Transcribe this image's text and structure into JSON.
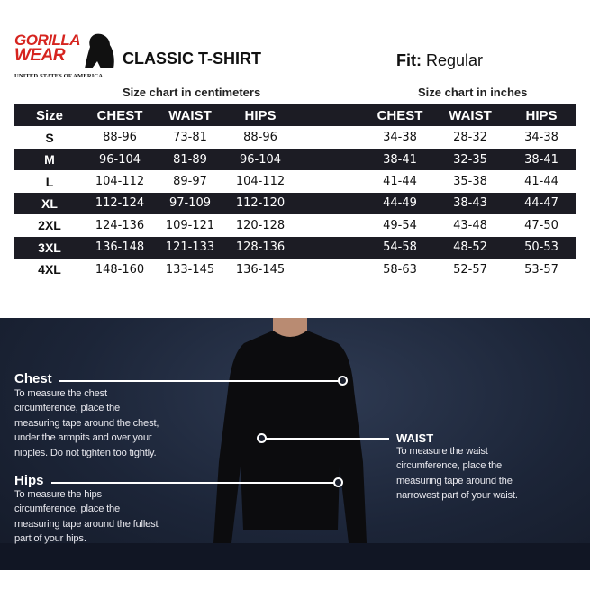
{
  "brand": {
    "line1": "GORILLA",
    "line2": "WEAR",
    "tagline": "UNITED STATES OF AMERICA",
    "accent": "#d6241f"
  },
  "title": "CLASSIC T-SHIRT",
  "fit": {
    "label": "Fit:",
    "value": "Regular"
  },
  "cm": {
    "caption": "Size chart in centimeters",
    "headers": [
      "Size",
      "CHEST",
      "WAIST",
      "HIPS"
    ],
    "rows": [
      [
        "S",
        "88-96",
        "73-81",
        "88-96"
      ],
      [
        "M",
        "96-104",
        "81-89",
        "96-104"
      ],
      [
        "L",
        "104-112",
        "89-97",
        "104-112"
      ],
      [
        "XL",
        "112-124",
        "97-109",
        "112-120"
      ],
      [
        "2XL",
        "124-136",
        "109-121",
        "120-128"
      ],
      [
        "3XL",
        "136-148",
        "121-133",
        "128-136"
      ],
      [
        "4XL",
        "148-160",
        "133-145",
        "136-145"
      ]
    ]
  },
  "inches": {
    "caption": "Size chart in inches",
    "headers": [
      "CHEST",
      "WAIST",
      "HIPS"
    ],
    "rows": [
      [
        "34-38",
        "28-32",
        "34-38"
      ],
      [
        "38-41",
        "32-35",
        "38-41"
      ],
      [
        "41-44",
        "35-38",
        "41-44"
      ],
      [
        "44-49",
        "38-43",
        "44-47"
      ],
      [
        "49-54",
        "43-48",
        "47-50"
      ],
      [
        "54-58",
        "48-52",
        "50-53"
      ],
      [
        "58-63",
        "52-57",
        "53-57"
      ]
    ]
  },
  "measure": {
    "chest": {
      "label": "Chest",
      "text": [
        "To measure the chest",
        "circumference, place the",
        "measuring tape around the chest,",
        "under the armpits and over your",
        "nipples. Do not tighten too tightly."
      ]
    },
    "waist": {
      "label": "WAIST",
      "text": [
        "To measure the waist",
        "circumference, place the",
        "measuring tape around the",
        "narrowest part of your waist."
      ]
    },
    "hips": {
      "label": "Hips",
      "text": [
        "To measure the hips",
        "circumference, place the",
        "measuring tape around the fullest",
        "part of your hips."
      ]
    }
  }
}
